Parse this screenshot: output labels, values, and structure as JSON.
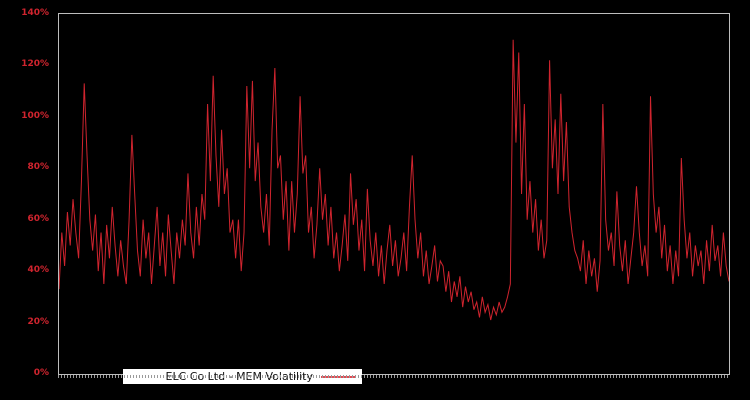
{
  "chart": {
    "legend": {
      "label": "ELC Co Ltd - MEM Volatility"
    },
    "y_axis": {
      "tick_labels": [
        "0%",
        "20%",
        "40%",
        "60%",
        "80%",
        "100%",
        "120%",
        "140%"
      ]
    },
    "colors": {
      "background": "#000000",
      "line": "#d0242e",
      "axis_label": "#d0242e",
      "plot_border": "#bdbdbd",
      "x_tick": "#9a9a9a",
      "legend_bg": "#ffffff",
      "legend_text": "#111111",
      "legend_line_sample": "#e04a52"
    }
  },
  "chart_data": {
    "type": "line",
    "title": "",
    "xlabel": "",
    "ylabel": "",
    "y_unit": "%",
    "ylim": [
      0,
      140
    ],
    "y_tick_values": [
      0,
      20,
      40,
      60,
      80,
      100,
      120,
      140
    ],
    "x_tick_labels": [],
    "grid": false,
    "legend_position": "bottom-left",
    "background": "black",
    "series": [
      {
        "name": "ELC Co Ltd - MEM Volatility",
        "values": [
          33,
          55,
          42,
          63,
          50,
          68,
          55,
          45,
          75,
          113,
          85,
          60,
          48,
          62,
          40,
          55,
          35,
          58,
          45,
          65,
          50,
          38,
          52,
          42,
          35,
          60,
          93,
          70,
          48,
          38,
          60,
          45,
          55,
          35,
          50,
          65,
          42,
          55,
          38,
          62,
          48,
          35,
          55,
          45,
          60,
          50,
          78,
          55,
          45,
          65,
          50,
          70,
          60,
          105,
          75,
          116,
          85,
          65,
          95,
          70,
          80,
          55,
          60,
          45,
          60,
          40,
          55,
          112,
          80,
          114,
          75,
          90,
          65,
          55,
          70,
          50,
          95,
          119,
          80,
          85,
          60,
          75,
          48,
          75,
          55,
          70,
          108,
          78,
          85,
          55,
          65,
          45,
          58,
          80,
          60,
          70,
          50,
          65,
          45,
          55,
          40,
          50,
          62,
          44,
          78,
          58,
          68,
          48,
          60,
          40,
          72,
          52,
          42,
          55,
          38,
          50,
          35,
          48,
          58,
          42,
          52,
          38,
          45,
          55,
          40,
          65,
          85,
          60,
          45,
          55,
          38,
          48,
          35,
          42,
          50,
          36,
          44,
          42,
          32,
          40,
          28,
          36,
          30,
          38,
          26,
          34,
          28,
          32,
          25,
          28,
          22,
          30,
          24,
          27,
          21,
          26,
          23,
          28,
          24,
          26,
          30,
          35,
          130,
          90,
          125,
          70,
          105,
          60,
          75,
          55,
          68,
          48,
          60,
          45,
          52,
          122,
          80,
          99,
          70,
          109,
          75,
          98,
          65,
          55,
          48,
          45,
          40,
          52,
          35,
          48,
          38,
          45,
          32,
          44,
          105,
          60,
          48,
          55,
          42,
          71,
          50,
          40,
          52,
          35,
          45,
          55,
          73,
          55,
          42,
          50,
          38,
          108,
          70,
          55,
          65,
          45,
          58,
          40,
          50,
          35,
          48,
          38,
          84,
          60,
          45,
          55,
          38,
          50,
          42,
          48,
          35,
          52,
          40,
          58,
          44,
          50,
          38,
          55,
          42,
          36
        ]
      }
    ]
  }
}
